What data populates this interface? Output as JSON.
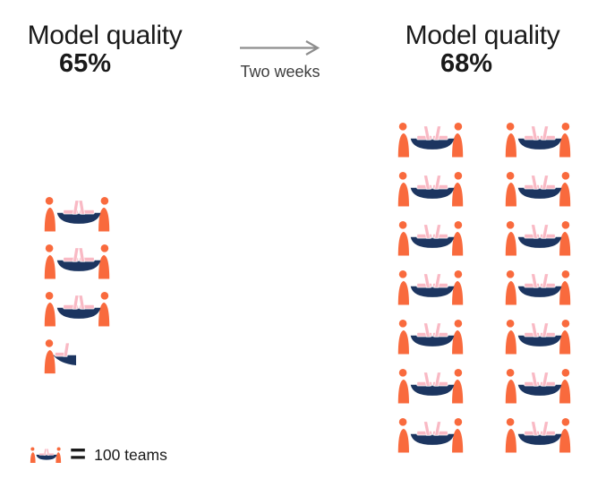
{
  "chart_data": {
    "type": "pictograph",
    "icon_description": "two people seated at a table with two laptops = one team icon",
    "icon_unit_value": 100,
    "icon_unit_label": "100 teams",
    "groups": [
      {
        "label": "Model quality",
        "value_label": "65%",
        "icons_full": 3,
        "icons_half": 1,
        "icon_count": 3.5,
        "teams_represented": 350
      },
      {
        "label": "Model quality",
        "value_label": "68%",
        "icons_full": 14,
        "icons_half": 0,
        "icon_count": 14,
        "teams_represented": 1400
      }
    ],
    "transition_label": "Two weeks",
    "legend": {
      "equals_sign": "=",
      "label": "100 teams"
    },
    "layout_hints": {
      "before_columns": 1,
      "after_columns": 2,
      "after_rows": 7,
      "legend_position": "bottom-left"
    }
  },
  "colors": {
    "person_orange": "#F96A3D",
    "table_navy": "#1C3560",
    "laptop_pink": "#F9B9C4",
    "arrow_gray": "#8D8D8D",
    "text_dark": "#1A1A1A",
    "text_gray": "#3E3E3E"
  }
}
